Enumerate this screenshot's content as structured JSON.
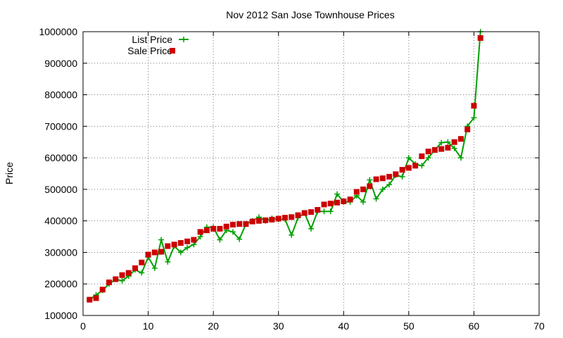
{
  "chart_data": {
    "type": "line",
    "title": "Nov 2012 San Jose Townhouse Prices",
    "xlabel": "",
    "ylabel": "Price",
    "xlim": [
      0,
      70
    ],
    "ylim": [
      100000,
      1000000
    ],
    "xticks": [
      0,
      10,
      20,
      30,
      40,
      50,
      60,
      70
    ],
    "yticks": [
      100000,
      200000,
      300000,
      400000,
      500000,
      600000,
      700000,
      800000,
      900000,
      1000000
    ],
    "xtick_labels": [
      "0",
      "10",
      "20",
      "30",
      "40",
      "50",
      "60",
      "70"
    ],
    "ytick_labels": [
      "100000",
      "200000",
      "300000",
      "400000",
      "500000",
      "600000",
      "700000",
      "800000",
      "900000",
      "1000000"
    ],
    "grid": true,
    "legend_position": "top-left",
    "x": [
      1,
      2,
      3,
      4,
      5,
      6,
      7,
      8,
      9,
      10,
      11,
      12,
      13,
      14,
      15,
      16,
      17,
      18,
      19,
      20,
      21,
      22,
      23,
      24,
      25,
      26,
      27,
      28,
      29,
      30,
      31,
      32,
      33,
      34,
      35,
      36,
      37,
      38,
      39,
      40,
      41,
      42,
      43,
      44,
      45,
      46,
      47,
      48,
      49,
      50,
      51,
      52,
      53,
      54,
      55,
      56,
      57,
      58,
      59,
      60,
      61
    ],
    "series": [
      {
        "name": "List Price",
        "style": "lines+crosses",
        "color": "#00a000",
        "values": [
          150000,
          165000,
          180000,
          200000,
          215000,
          210000,
          225000,
          245000,
          235000,
          285000,
          250000,
          340000,
          270000,
          320000,
          300000,
          315000,
          325000,
          350000,
          380000,
          380000,
          340000,
          370000,
          365000,
          342000,
          390000,
          400000,
          412000,
          400000,
          408000,
          405000,
          405000,
          355000,
          410000,
          425000,
          375000,
          430000,
          430000,
          430000,
          485000,
          460000,
          460000,
          480000,
          460000,
          530000,
          470000,
          500000,
          515000,
          545000,
          540000,
          600000,
          580000,
          575000,
          600000,
          625000,
          648000,
          650000,
          630000,
          600000,
          700000,
          727000,
          1000000
        ]
      },
      {
        "name": "Sale Price",
        "style": "squares",
        "color": "#cc0000",
        "values": [
          150000,
          155000,
          182000,
          205000,
          215000,
          228000,
          235000,
          250000,
          268000,
          293000,
          300000,
          302000,
          320000,
          325000,
          330000,
          335000,
          340000,
          365000,
          370000,
          375000,
          375000,
          382000,
          388000,
          390000,
          390000,
          398000,
          400000,
          402000,
          404000,
          407000,
          410000,
          412000,
          418000,
          425000,
          428000,
          435000,
          452000,
          455000,
          458000,
          462000,
          468000,
          492000,
          500000,
          510000,
          532000,
          535000,
          540000,
          548000,
          562000,
          568000,
          575000,
          605000,
          620000,
          625000,
          628000,
          632000,
          650000,
          660000,
          690000,
          765000,
          980000
        ]
      }
    ]
  }
}
